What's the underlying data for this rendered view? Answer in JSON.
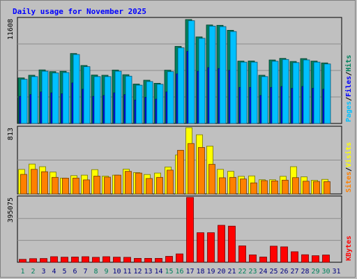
{
  "chart_data": {
    "type": "bar",
    "title": "Daily usage for November 2025",
    "categories": [
      "1",
      "2",
      "3",
      "4",
      "5",
      "6",
      "7",
      "8",
      "9",
      "10",
      "11",
      "12",
      "13",
      "14",
      "15",
      "16",
      "17",
      "18",
      "19",
      "20",
      "21",
      "22",
      "23",
      "24",
      "25",
      "26",
      "27",
      "28",
      "29",
      "30",
      "31"
    ],
    "weekend_days": [
      "1",
      "2",
      "8",
      "9",
      "15",
      "16",
      "22",
      "23",
      "29",
      "30"
    ],
    "colors": {
      "hits": "#00805c",
      "files": "#0000ff",
      "pages": "#00c0ff",
      "visits": "#ffff00",
      "sites": "#ff8000",
      "kbytes": "#ff0000",
      "title": "#0000ff",
      "weekday_label": "#000080",
      "weekend_label": "#00805c"
    },
    "panels": [
      {
        "id": "hits-files-pages",
        "max_label": "11608",
        "ymax": 11608,
        "legend": [
          "Pages",
          "Files",
          "Hits"
        ],
        "series": [
          {
            "name": "Hits",
            "values": [
              5050,
              5350,
              5940,
              5750,
              5790,
              7760,
              6430,
              5370,
              5350,
              5930,
              5410,
              4370,
              4800,
              4460,
              5910,
              8550,
              11530,
              9600,
              10930,
              10890,
              10340,
              6920,
              6930,
              5350,
              7040,
              7220,
              6880,
              7200,
              6920,
              6720,
              0
            ]
          },
          {
            "name": "Files",
            "values": [
              3000,
              3200,
              3500,
              3400,
              3300,
              4500,
              3800,
              3000,
              3100,
              3400,
              3200,
              2600,
              2900,
              2700,
              3500,
              5500,
              8000,
              5800,
              6200,
              6100,
              5900,
              4000,
              4000,
              3100,
              4000,
              4100,
              3900,
              4100,
              3900,
              3800,
              0
            ]
          },
          {
            "name": "Pages",
            "values": [
              4900,
              5200,
              5800,
              5600,
              5650,
              7650,
              6300,
              5200,
              5200,
              5800,
              5250,
              4250,
              4650,
              4350,
              5750,
              8400,
              11400,
              9450,
              10800,
              10750,
              10200,
              6800,
              6800,
              5200,
              6900,
              7100,
              6750,
              7050,
              6800,
              6600,
              0
            ]
          }
        ]
      },
      {
        "id": "visits-sites",
        "max_label": "813",
        "ymax": 813,
        "legend": [
          "Sites",
          "Visits"
        ],
        "series": [
          {
            "name": "Visits",
            "values": [
              300,
              366,
              334,
              268,
              194,
              224,
              230,
              298,
              218,
              230,
              304,
              262,
              238,
              256,
              330,
              478,
              813,
              726,
              586,
              301,
              277,
              216,
              221,
              174,
              174,
              216,
              334,
              209,
              167,
              178,
              0
            ]
          },
          {
            "name": "Sites",
            "values": [
              240,
              301,
              272,
              203,
              193,
              194,
              172,
              218,
              205,
              230,
              276,
              256,
              189,
              203,
              292,
              535,
              618,
              570,
              363,
              198,
              203,
              183,
              135,
              163,
              159,
              169,
              199,
              156,
              152,
              151,
              0
            ]
          }
        ]
      },
      {
        "id": "kbytes",
        "max_label": "395075",
        "ymax": 395075,
        "legend": [
          "KBytes"
        ],
        "series": [
          {
            "name": "KBytes",
            "values": [
              18000,
              22000,
              23000,
              34000,
              31000,
              32000,
              34000,
              30000,
              34000,
              31000,
              30000,
              24000,
              24000,
              24000,
              36000,
              51000,
              395075,
              180000,
              180000,
              225000,
              220000,
              100000,
              45000,
              32000,
              98000,
              94000,
              64000,
              46000,
              40000,
              44000,
              0
            ]
          }
        ]
      }
    ]
  }
}
